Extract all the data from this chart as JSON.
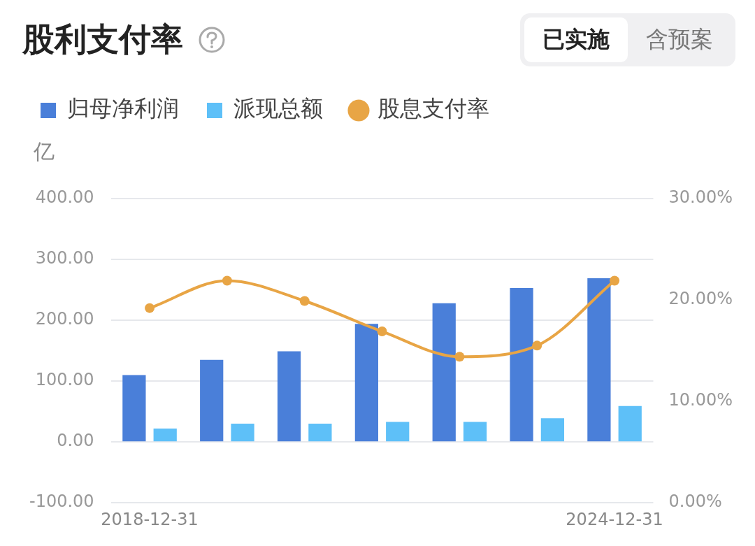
{
  "chart_data": {
    "type": "bar",
    "title": "股利支付率",
    "ylabel": "亿",
    "annotations": [
      "已实施",
      "含预案"
    ],
    "categories": [
      "2018-12-31",
      null,
      null,
      null,
      null,
      null,
      "2024-12-31"
    ],
    "series": [
      {
        "name": "归母净利润",
        "color": "#4a7fd9",
        "values": [
          110,
          135,
          149,
          194,
          228,
          253,
          269
        ]
      },
      {
        "name": "派现总额",
        "color": "#5ec0f8",
        "values": [
          22,
          30,
          30,
          33,
          33,
          39,
          59
        ]
      },
      {
        "name": "股息支付率",
        "type": "line",
        "axis": "y2",
        "color": "#e8a545",
        "marker": "circle",
        "values": [
          19.2,
          21.9,
          19.9,
          16.9,
          14.4,
          15.5,
          21.9
        ]
      }
    ],
    "ylim": [
      -100,
      400
    ],
    "yticks": [
      {
        "value": -100,
        "label": "-100.00"
      },
      {
        "value": 0,
        "label": "0.00"
      },
      {
        "value": 100,
        "label": "100.00"
      },
      {
        "value": 200,
        "label": "200.00"
      },
      {
        "value": 300,
        "label": "300.00"
      },
      {
        "value": 400,
        "label": "400.00"
      }
    ],
    "y2lim": [
      0,
      30
    ],
    "y2ticks": [
      {
        "value": 0,
        "label": "0.00%"
      },
      {
        "value": 10,
        "label": "10.00%"
      },
      {
        "value": 20,
        "label": "20.00%"
      },
      {
        "value": 30,
        "label": "30.00%"
      }
    ],
    "grid": "y",
    "legend": "top left"
  }
}
